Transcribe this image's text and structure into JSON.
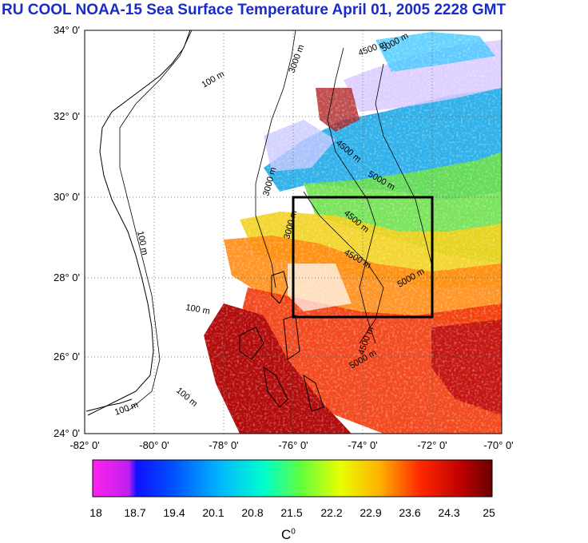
{
  "title": "RU COOL  NOAA-15 Sea Surface Temperature April 01, 2005 2228 GMT",
  "map": {
    "lat_labels": [
      "34° 0'",
      "32° 0'",
      "30° 0'",
      "28° 0'",
      "26° 0'",
      "24° 0'"
    ],
    "lon_labels": [
      "-82° 0'",
      "-80° 0'",
      "-78° 0'",
      "-76° 0'",
      "-74° 0'",
      "-72° 0'",
      "-70° 0'"
    ],
    "lat_values": [
      34,
      32,
      30,
      28,
      26,
      24
    ],
    "lon_values": [
      -82,
      -80,
      -78,
      -76,
      -74,
      -72,
      -70
    ],
    "extent": {
      "lon_min": -82,
      "lon_max": -70,
      "lat_min": 24,
      "lat_max": 34
    },
    "study_box": {
      "lon_min": -76,
      "lon_max": -72,
      "lat_min": 27,
      "lat_max": 30
    },
    "contour_labels": {
      "m100": "100 m",
      "m3000": "3000 m",
      "m4500": "4500 m",
      "m5000": "5000 m"
    },
    "grid": "dotted"
  },
  "colorbar": {
    "tick_labels": [
      "18",
      "18.7",
      "19.4",
      "20.1",
      "20.8",
      "21.5",
      "22.2",
      "22.9",
      "23.6",
      "24.3",
      "25"
    ],
    "tick_values": [
      18,
      18.7,
      19.4,
      20.1,
      20.8,
      21.5,
      22.2,
      22.9,
      23.6,
      24.3,
      25
    ],
    "units_base": "C",
    "units_sup": "0",
    "colors": [
      "#ff00ff",
      "#a020f0",
      "#0000ff",
      "#0080ff",
      "#00e5ff",
      "#00ff80",
      "#b0ff00",
      "#ffff00",
      "#ff9000",
      "#ff0000",
      "#b00000",
      "#700000"
    ]
  },
  "title_color": "#1a2bc8"
}
